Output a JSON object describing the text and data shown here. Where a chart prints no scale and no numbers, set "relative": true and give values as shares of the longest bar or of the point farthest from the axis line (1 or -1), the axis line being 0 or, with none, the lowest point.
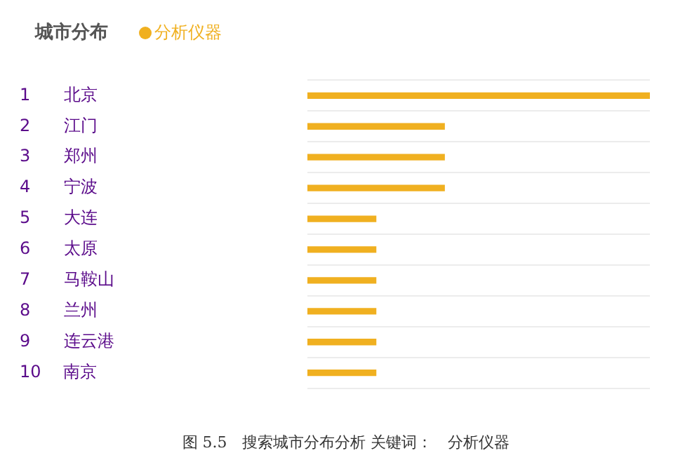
{
  "chart_data": {
    "type": "bar",
    "orientation": "horizontal",
    "relative": true,
    "title": "城市分布",
    "annotations": [
      "图 5.5　搜索城市分布分析 关键词：　分析仪器"
    ],
    "categories": [
      "1　　北京",
      "2　　江门",
      "3　　郑州",
      "4　　宁波",
      "5　　大连",
      "6　　太原",
      "7　　马鞍山",
      "8　　兰州",
      "9　　连云港",
      "10　 南京"
    ],
    "series": [
      {
        "name": "分析仪器",
        "color": "#f0b020",
        "values": [
          1,
          0.4,
          0.4,
          0.4,
          0.2,
          0.2,
          0.2,
          0.2,
          0.2,
          0.2
        ]
      }
    ],
    "grid": "y",
    "legend": "top left"
  }
}
